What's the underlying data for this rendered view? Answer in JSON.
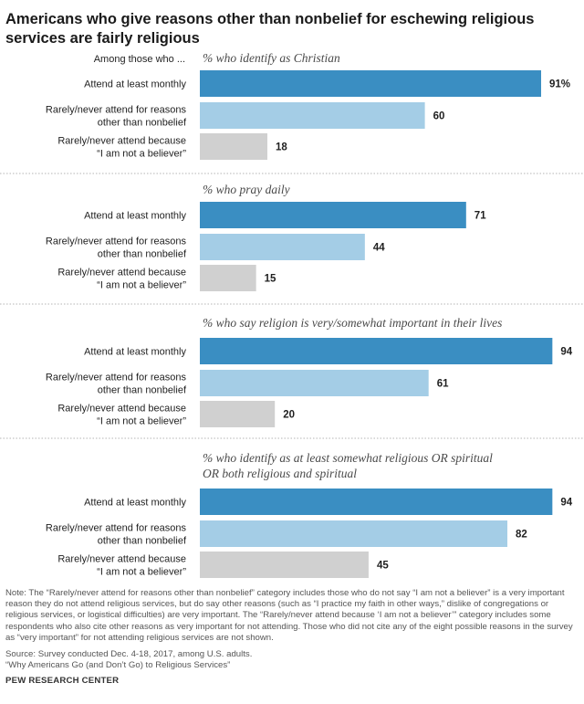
{
  "title": "Americans who give reasons other than nonbelief for eschewing religious services are fairly religious",
  "row_header": "Among those who ...",
  "colors": {
    "monthly": "#3a8ec2",
    "other_reasons": "#a4cde6",
    "non_believer": "#d0d0d0",
    "divider": "#b5b5b5"
  },
  "chart_data": {
    "type": "bar",
    "orientation": "horizontal",
    "xlim": [
      0,
      100
    ],
    "categories": [
      "Attend at least monthly",
      "Rarely/never attend for reasons other than nonbelief",
      "Rarely/never attend because “I am not a believer”"
    ],
    "panels": [
      {
        "heading": [
          "% who identify as Christian"
        ],
        "values": [
          91,
          60,
          18
        ],
        "value_labels": [
          "91%",
          "60",
          "18"
        ]
      },
      {
        "heading": [
          "% who pray daily"
        ],
        "values": [
          71,
          44,
          15
        ],
        "value_labels": [
          "71",
          "44",
          "15"
        ]
      },
      {
        "heading": [
          "% who say religion is very/somewhat important in their lives"
        ],
        "values": [
          94,
          61,
          20
        ],
        "value_labels": [
          "94",
          "61",
          "20"
        ]
      },
      {
        "heading": [
          "% who identify as at least somewhat religious OR spiritual",
          "OR both religious and spiritual"
        ],
        "values": [
          94,
          82,
          45
        ],
        "value_labels": [
          "94",
          "82",
          "45"
        ]
      }
    ]
  },
  "category_lines": [
    [
      "Attend at least monthly"
    ],
    [
      "Rarely/never attend for reasons",
      "other than nonbelief"
    ],
    [
      "Rarely/never attend because",
      "“I am not a believer”"
    ]
  ],
  "note": "Note: The “Rarely/never attend for reasons other than nonbelief” category includes those who do not say “I am not a believer” is a very important reason they do not attend religious services, but do say other reasons (such as “I practice my faith in other ways,” dislike of congregations or religious services, or logistical difficulties) are very important. The “Rarely/never attend because ‘I am not a believer’” category includes some respondents who also cite other reasons as very important for not attending. Those who did not cite any of the eight possible reasons in the survey as “very important” for not attending religious services are not shown.",
  "source": "Source: Survey conducted Dec. 4-18, 2017, among U.S. adults.",
  "report": "“Why Americans Go (and Don’t Go) to Religious Services”",
  "brand": "PEW RESEARCH CENTER"
}
